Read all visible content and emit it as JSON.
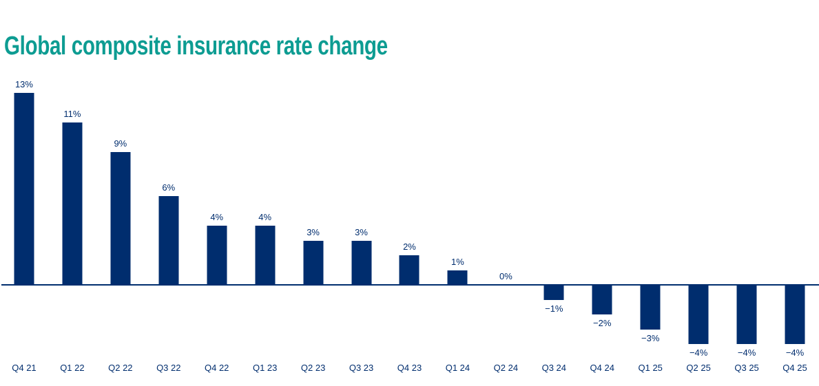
{
  "page": {
    "title": "Global composite insurance rate change"
  },
  "colors": {
    "title_teal": "#0d9c92",
    "bar_navy": "#002d6e",
    "label_navy": "#002d6e",
    "axis_navy": "#002d6e",
    "background": "#ffffff"
  },
  "chart_data": {
    "type": "bar",
    "title": "Global composite insurance rate change",
    "categories": [
      "Q4 21",
      "Q1 22",
      "Q2 22",
      "Q3 22",
      "Q4 22",
      "Q1 23",
      "Q2 23",
      "Q3 23",
      "Q4 23",
      "Q1 24",
      "Q2 24",
      "Q3 24",
      "Q4 24",
      "Q1 25",
      "Q2 25",
      "Q3 25",
      "Q4 25"
    ],
    "values": [
      13,
      11,
      9,
      6,
      4,
      4,
      3,
      3,
      2,
      1,
      0,
      -1,
      -2,
      -3,
      -4,
      -4,
      -4
    ],
    "labels": [
      "13%",
      "11%",
      "9%",
      "6%",
      "4%",
      "4%",
      "3%",
      "3%",
      "2%",
      "1%",
      "0%",
      "−1%",
      "−2%",
      "−3%",
      "−4%",
      "−4%",
      "−4%"
    ],
    "unit": "%",
    "xlabel": "",
    "ylabel": "",
    "ylim": [
      -5,
      14
    ],
    "grid": false,
    "legend": "none",
    "zero_baseline": true,
    "bar_color": "#002d6e"
  }
}
